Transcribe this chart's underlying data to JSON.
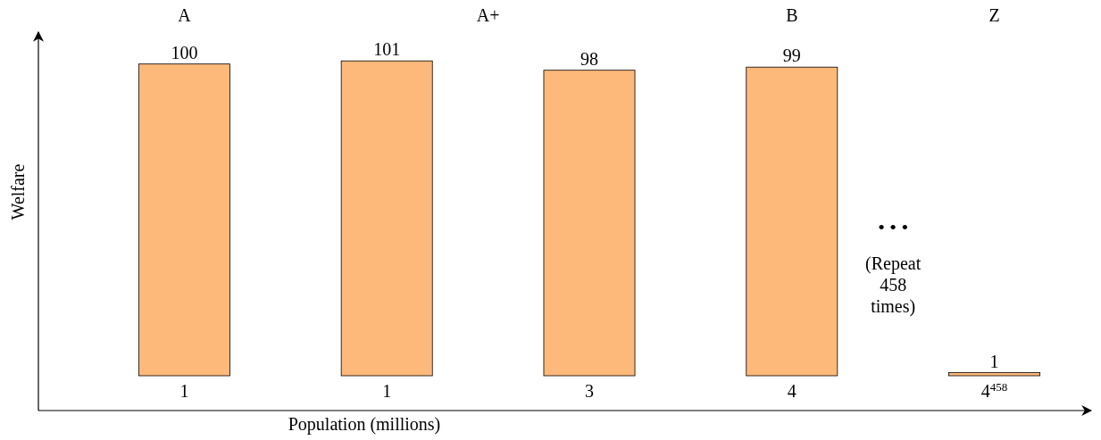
{
  "chart_data": {
    "type": "bar",
    "xlabel": "Population (millions)",
    "ylabel": "Welfare",
    "categories": [
      "1",
      "1",
      "3",
      "4",
      "4$^{458}$"
    ],
    "values": [
      100,
      101,
      98,
      99,
      1
    ],
    "color": "#fdb97a",
    "data_labels": true,
    "annotations": [
      "A",
      "A+",
      "B",
      "Z",
      "• • •",
      "(Repeat 458 times)"
    ]
  }
}
